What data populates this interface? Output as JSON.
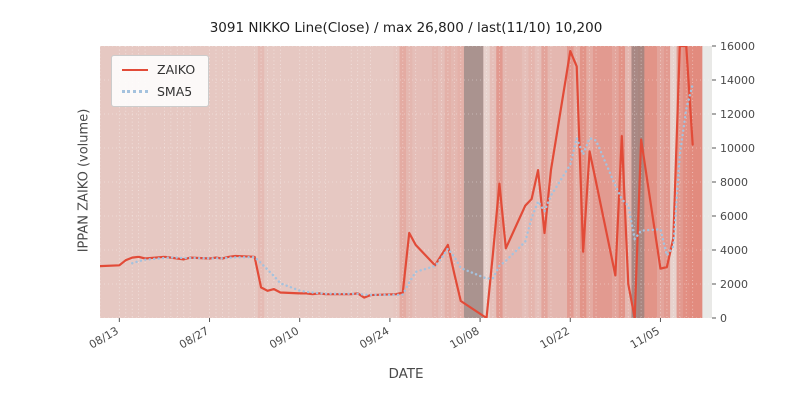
{
  "chart_data": {
    "type": "line",
    "title": "3091 NIKKO Line(Close) / max 26,800 / last(11/10) 10,200",
    "xlabel": "DATE",
    "ylabel": "IPPAN ZAIKO (volume)",
    "ylim": [
      0,
      16000
    ],
    "max_value": 26800,
    "last_label": "last(11/10) 10,200",
    "last_value": 10200,
    "grid": true,
    "legend_position": "upper left",
    "y_ticks": [
      0,
      2000,
      4000,
      6000,
      8000,
      10000,
      12000,
      14000,
      16000
    ],
    "x_tick_labels": [
      "08/13",
      "08/27",
      "09/10",
      "09/24",
      "10/08",
      "10/22",
      "11/05"
    ],
    "dates": [
      "08/09",
      "08/10",
      "08/13",
      "08/14",
      "08/15",
      "08/16",
      "08/17",
      "08/20",
      "08/21",
      "08/22",
      "08/23",
      "08/24",
      "08/27",
      "08/28",
      "08/29",
      "08/30",
      "08/31",
      "09/03",
      "09/04",
      "09/05",
      "09/06",
      "09/07",
      "09/10",
      "09/11",
      "09/12",
      "09/13",
      "09/14",
      "09/18",
      "09/19",
      "09/20",
      "09/21",
      "09/25",
      "09/26",
      "09/27",
      "09/28",
      "10/01",
      "10/02",
      "10/03",
      "10/04",
      "10/05",
      "10/09",
      "10/10",
      "10/11",
      "10/12",
      "10/15",
      "10/16",
      "10/17",
      "10/18",
      "10/19",
      "10/22",
      "10/23",
      "10/24",
      "10/25",
      "10/26",
      "10/29",
      "10/30",
      "10/31",
      "11/01",
      "11/02",
      "11/05",
      "11/06",
      "11/07",
      "11/08",
      "11/09",
      "11/10"
    ],
    "series": [
      {
        "name": "ZAIKO",
        "color": "#e24b38",
        "style": "solid",
        "values": [
          3000,
          3050,
          3100,
          3400,
          3550,
          3600,
          3500,
          3600,
          3550,
          3500,
          3450,
          3550,
          3500,
          3550,
          3500,
          3600,
          3650,
          3600,
          1800,
          1600,
          1700,
          1500,
          1450,
          1450,
          1400,
          1450,
          1400,
          1400,
          1450,
          1200,
          1350,
          1400,
          1500,
          5000,
          4300,
          3100,
          3700,
          4300,
          2600,
          1000,
          0,
          3800,
          7900,
          4100,
          6600,
          7000,
          8700,
          5000,
          8700,
          15700,
          14800,
          3900,
          9800,
          8000,
          2500,
          10700,
          2000,
          0,
          10500,
          2900,
          3000,
          4700,
          26800,
          24000,
          10200
        ]
      },
      {
        "name": "SMA5",
        "color": "#a4c2de",
        "style": "dotted",
        "derived": "5-day moving average of ZAIKO",
        "values": [
          null,
          null,
          null,
          null,
          3220,
          3340,
          3430,
          3530,
          3560,
          3550,
          3520,
          3530,
          3510,
          3510,
          3510,
          3540,
          3560,
          3580,
          3230,
          2850,
          2470,
          2040,
          1610,
          1540,
          1500,
          1450,
          1430,
          1420,
          1420,
          1380,
          1360,
          1360,
          1380,
          2090,
          2710,
          3060,
          3520,
          4080,
          3600,
          2940,
          2320,
          2340,
          3060,
          3360,
          4480,
          5880,
          6860,
          6280,
          7200,
          9020,
          10580,
          9620,
          10580,
          10440,
          7800,
          6980,
          6600,
          4640,
          5140,
          5220,
          3680,
          4220,
          9580,
          12280,
          13740
        ]
      }
    ],
    "background_bands": {
      "color": "#dc4632",
      "alphas": [
        0.2,
        0.2,
        0.2,
        0.2,
        0.2,
        0.2,
        0.2,
        0.2,
        0.2,
        0.2,
        0.2,
        0.2,
        0.2,
        0.2,
        0.2,
        0.2,
        0.2,
        0.2,
        0.28,
        0.2,
        0.2,
        0.2,
        0.2,
        0.2,
        0.2,
        0.2,
        0.2,
        0.2,
        0.2,
        0.2,
        0.2,
        0.22,
        0.38,
        0.3,
        0.26,
        0.3,
        0.26,
        0.34,
        0.3,
        0.34,
        0.14,
        0.26,
        0.48,
        0.3,
        0.26,
        0.32,
        0.26,
        0.42,
        0.3,
        0.48,
        0.34,
        0.52,
        0.38,
        0.48,
        0.42,
        0.52,
        0.3,
        0.48,
        0.52,
        0.42,
        0.48,
        0.14,
        0.48,
        0.55,
        0.58
      ]
    },
    "gray_bands": [
      {
        "start": "10/06",
        "end": "10/08"
      },
      {
        "start": "11/01",
        "end": "11/02"
      }
    ]
  },
  "colors": {
    "plot_background": "#e9e9e7",
    "gridline": "#ffffff",
    "tick_text": "#4a4a4a",
    "gray_band": "#7a7a7a"
  }
}
